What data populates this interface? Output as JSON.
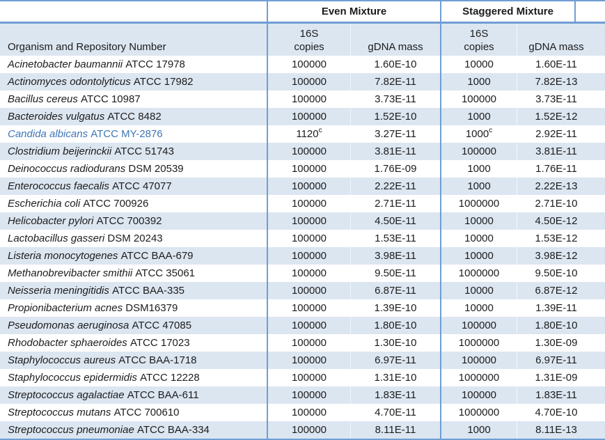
{
  "colors": {
    "border": "#6f9ed3",
    "stripe": "#dce6f1",
    "highlight": "#3f76b6",
    "text": "#1c1c1c"
  },
  "table": {
    "even_label": "Even Mixture",
    "staggered_label": "Staggered Mixture",
    "organism_header": "Organism and Repository Number",
    "copies_header_line1": "16S",
    "copies_header_line2": "copies",
    "gdna_header": "gDNA mass",
    "rows": [
      {
        "sci": "Acinetobacter baumannii",
        "rest": "ATCC 17978",
        "ec": "100000",
        "eg": "1.60E-10",
        "sc": "10000",
        "sg": "1.60E-11"
      },
      {
        "sci": "Actinomyces odontolyticus",
        "rest": "ATCC 17982",
        "ec": "100000",
        "eg": "7.82E-11",
        "sc": "1000",
        "sg": "7.82E-13"
      },
      {
        "sci": "Bacillus cereus",
        "rest": "ATCC 10987",
        "ec": "100000",
        "eg": "3.73E-11",
        "sc": "100000",
        "sg": "3.73E-11"
      },
      {
        "sci": "Bacteroides vulgatus",
        "rest": "ATCC 8482",
        "ec": "100000",
        "eg": "1.52E-10",
        "sc": "1000",
        "sg": "1.52E-12"
      },
      {
        "sci": "Candida albicans",
        "rest": "ATCC MY-2876",
        "ec": "1120",
        "ec_sup": "c",
        "eg": "3.27E-11",
        "sc": "1000",
        "sc_sup": "c",
        "sg": "2.92E-11",
        "hl": true
      },
      {
        "sci": "Clostridium beijerinckii",
        "rest": "ATCC 51743",
        "ec": "100000",
        "eg": "3.81E-11",
        "sc": "100000",
        "sg": "3.81E-11"
      },
      {
        "sci": "Deinococcus radiodurans",
        "rest": "DSM 20539",
        "ec": "100000",
        "eg": "1.76E-09",
        "sc": "1000",
        "sg": "1.76E-11"
      },
      {
        "sci": "Enterococcus faecalis",
        "rest": "ATCC 47077",
        "ec": "100000",
        "eg": "2.22E-11",
        "sc": "1000",
        "sg": "2.22E-13"
      },
      {
        "sci": "Escherichia coli",
        "rest": "ATCC 700926",
        "ec": "100000",
        "eg": "2.71E-11",
        "sc": "1000000",
        "sg": "2.71E-10"
      },
      {
        "sci": "Helicobacter pylori",
        "rest": "ATCC 700392",
        "ec": "100000",
        "eg": "4.50E-11",
        "sc": "10000",
        "sg": "4.50E-12"
      },
      {
        "sci": "Lactobacillus gasseri",
        "rest": "DSM 20243",
        "ec": "100000",
        "eg": "1.53E-11",
        "sc": "10000",
        "sg": "1.53E-12"
      },
      {
        "sci": "Listeria monocytogenes",
        "rest": "ATCC BAA-679",
        "ec": "100000",
        "eg": "3.98E-11",
        "sc": "10000",
        "sg": "3.98E-12"
      },
      {
        "sci": "Methanobrevibacter smithii",
        "rest": "ATCC 35061",
        "ec": "100000",
        "eg": "9.50E-11",
        "sc": "1000000",
        "sg": "9.50E-10"
      },
      {
        "sci": "Neisseria meningitidis",
        "rest": "ATCC BAA-335",
        "ec": "100000",
        "eg": "6.87E-11",
        "sc": "10000",
        "sg": "6.87E-12"
      },
      {
        "sci": "Propionibacterium acnes",
        "rest": "DSM16379",
        "ec": "100000",
        "eg": "1.39E-10",
        "sc": "10000",
        "sg": "1.39E-11"
      },
      {
        "sci": "Pseudomonas aeruginosa",
        "rest": "ATCC 47085",
        "ec": "100000",
        "eg": "1.80E-10",
        "sc": "100000",
        "sg": "1.80E-10"
      },
      {
        "sci": "Rhodobacter sphaeroides",
        "rest": "ATCC 17023",
        "ec": "100000",
        "eg": "1.30E-10",
        "sc": "1000000",
        "sg": "1.30E-09"
      },
      {
        "sci": "Staphylococcus aureus",
        "rest": "ATCC BAA-1718",
        "ec": "100000",
        "eg": "6.97E-11",
        "sc": "100000",
        "sg": "6.97E-11"
      },
      {
        "sci": "Staphylococcus epidermidis",
        "rest": "ATCC 12228",
        "ec": "100000",
        "eg": "1.31E-10",
        "sc": "1000000",
        "sg": "1.31E-09"
      },
      {
        "sci": "Streptococcus agalactiae",
        "rest": "ATCC BAA-611",
        "ec": "100000",
        "eg": "1.83E-11",
        "sc": "100000",
        "sg": "1.83E-11"
      },
      {
        "sci": "Streptococcus mutans",
        "rest": "ATCC 700610",
        "ec": "100000",
        "eg": "4.70E-11",
        "sc": "1000000",
        "sg": "4.70E-10"
      },
      {
        "sci": "Streptococcus pneumoniae",
        "rest": "ATCC BAA-334",
        "ec": "100000",
        "eg": "8.11E-11",
        "sc": "1000",
        "sg": "8.11E-13"
      }
    ]
  }
}
